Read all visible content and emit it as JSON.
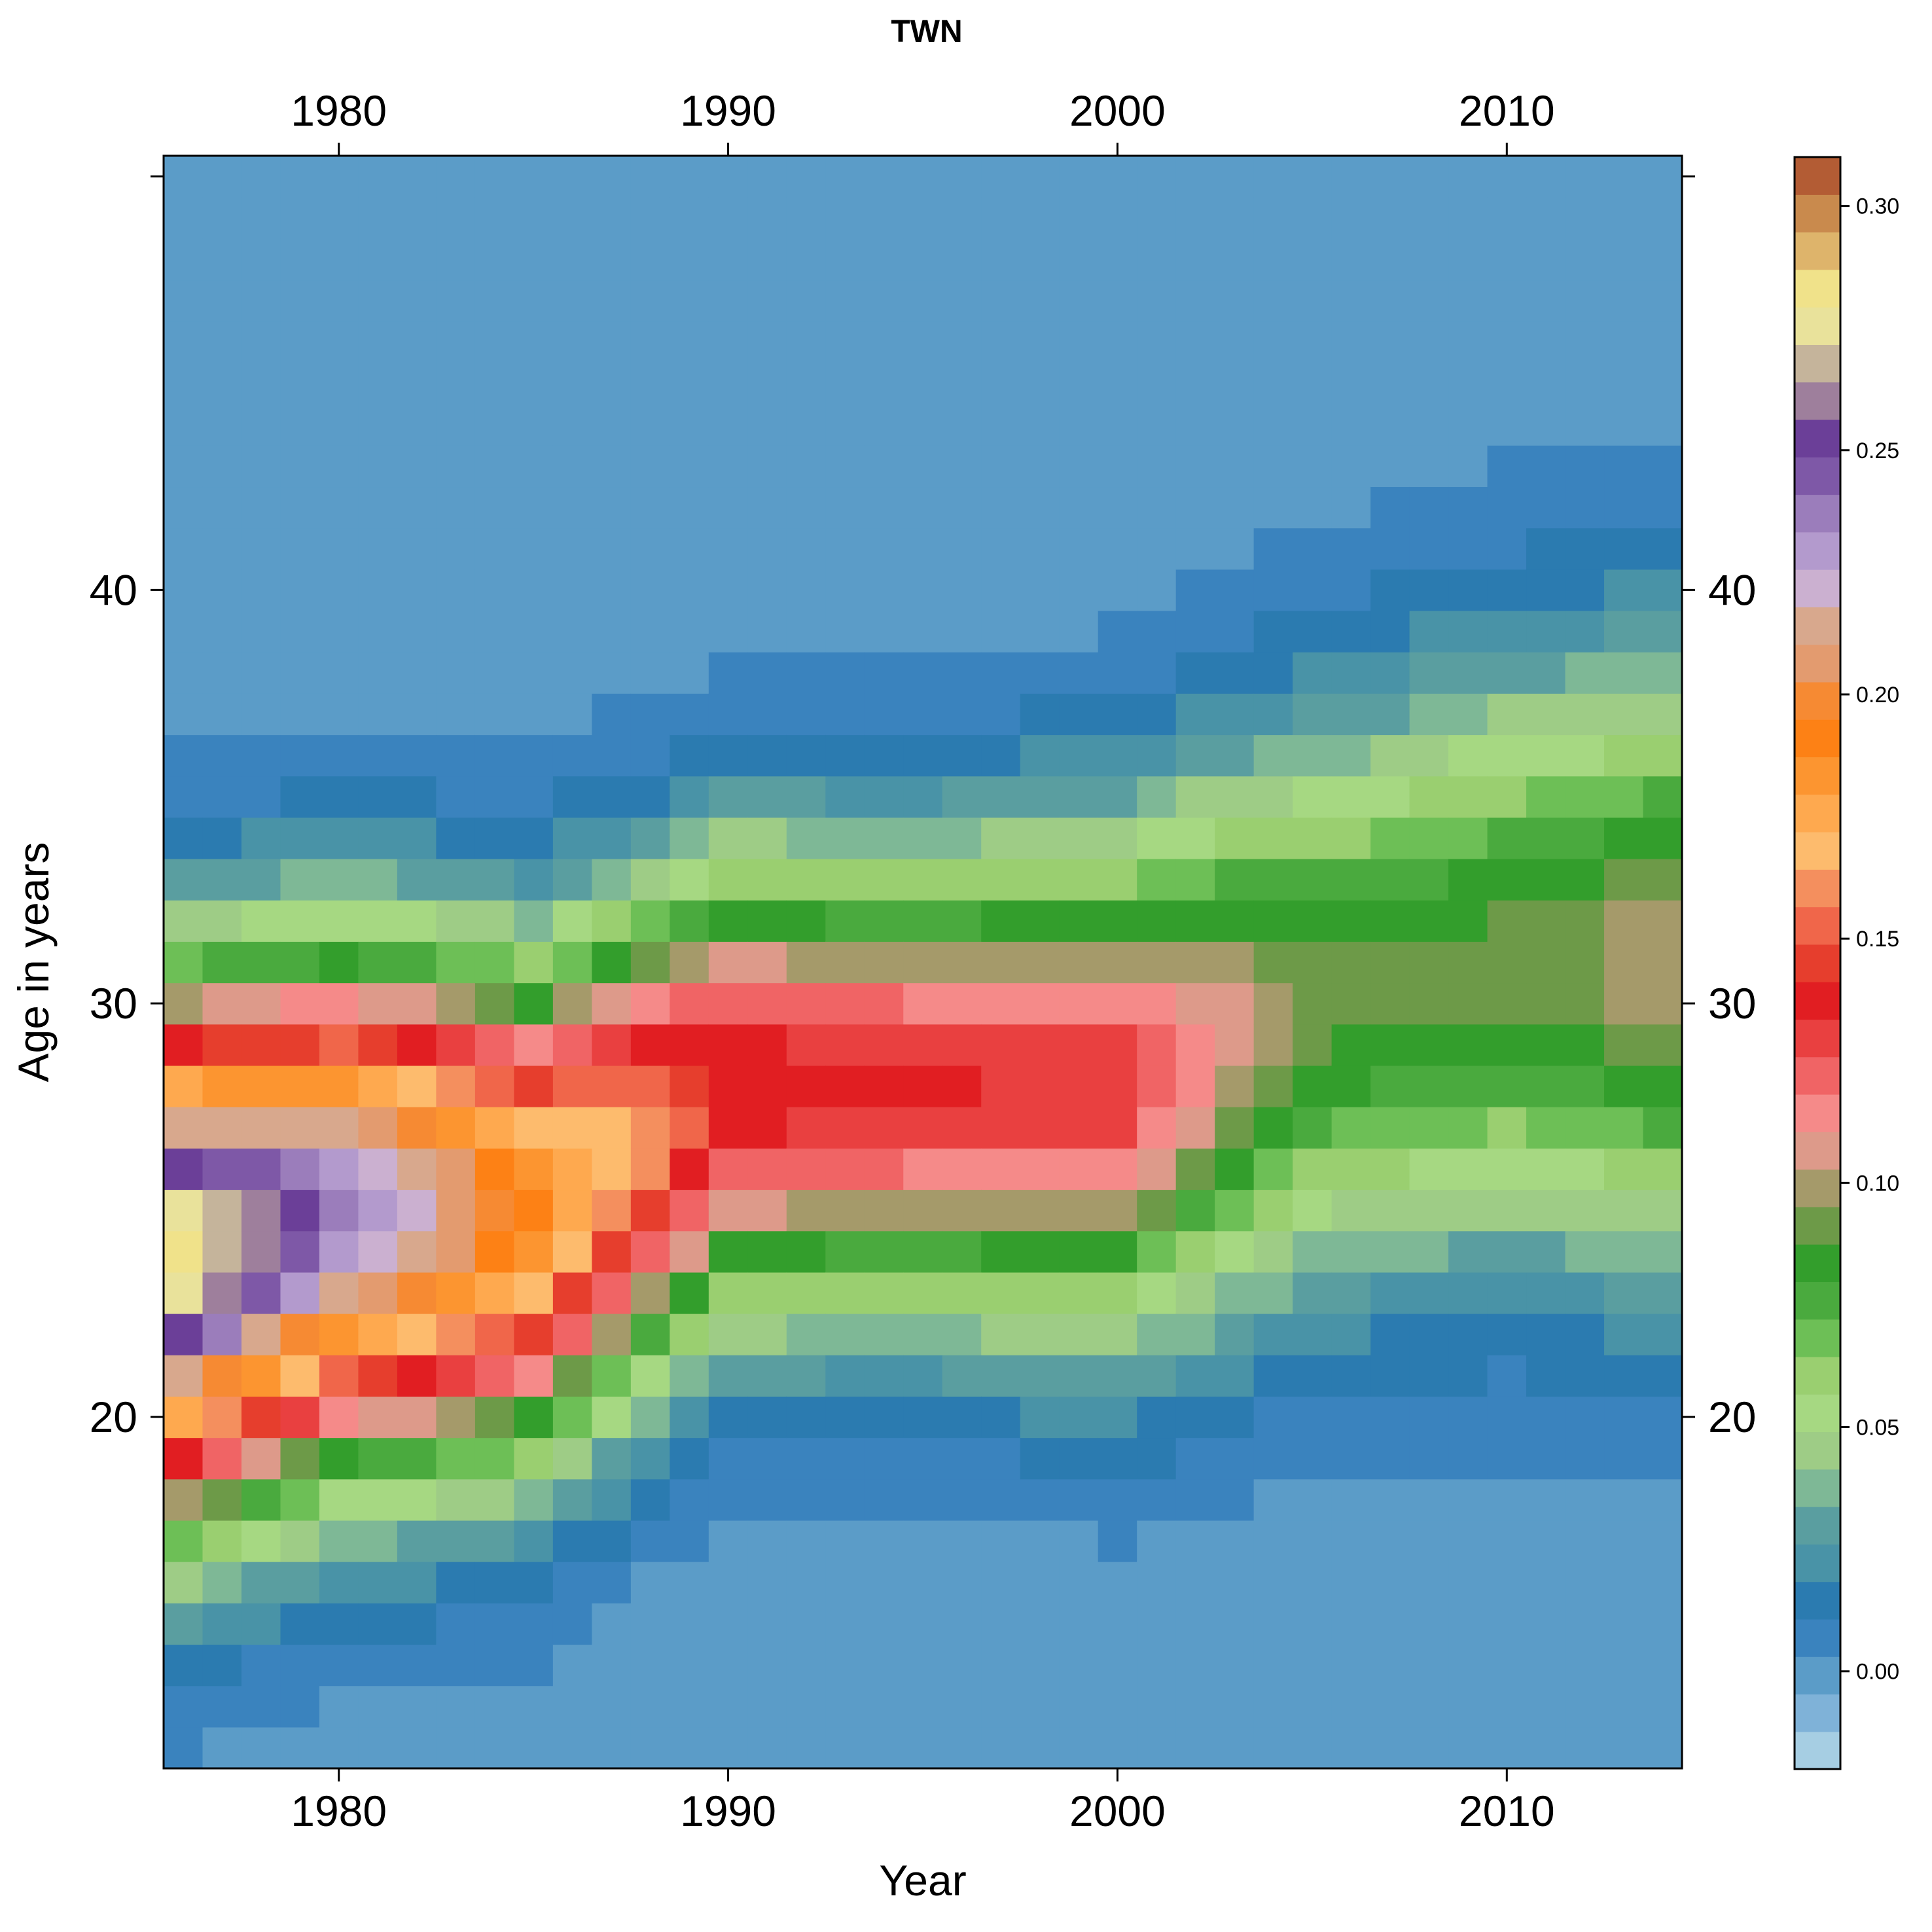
{
  "chart_data": {
    "type": "heatmap",
    "title": "TWN",
    "xlabel": "Year",
    "ylabel": "Age in years",
    "x_ticks": [
      1980,
      1990,
      2000,
      2010
    ],
    "y_ticks": [
      20,
      30,
      40
    ],
    "years_start": 1976,
    "years_end": 2014,
    "age_start": 12,
    "age_end": 50,
    "xlim": [
      1975.5,
      2014.5
    ],
    "ylim": [
      11.5,
      50.5
    ],
    "colorbar": {
      "ticks": [
        "0.00",
        "0.05",
        "0.10",
        "0.15",
        "0.20",
        "0.25",
        "0.30"
      ],
      "tick_values": [
        0.0,
        0.05,
        0.1,
        0.15,
        0.2,
        0.25,
        0.3
      ],
      "range": [
        -0.02,
        0.31
      ],
      "colors": [
        "#a6cee3",
        "#7fb2d8",
        "#5b9cc8",
        "#3a83be",
        "#2b7bb0",
        "#4993a7",
        "#5a9ea0",
        "#7eb896",
        "#9ecc86",
        "#a6d882",
        "#9acf70",
        "#6dbf56",
        "#4aaa3e",
        "#339e2c",
        "#6d9a48",
        "#a59a6a",
        "#dd9a8a",
        "#f58a89",
        "#f06465",
        "#e94040",
        "#e11e22",
        "#e63e2d",
        "#f0664a",
        "#f48f5e",
        "#fdbb6d",
        "#fea94f",
        "#fc9530",
        "#fd8115",
        "#f68a33",
        "#e39b6f",
        "#d8a88d",
        "#cbb0d0",
        "#b39acd",
        "#9b7dbb",
        "#7e58a7",
        "#6b3f98",
        "#9e7f9c",
        "#c5b49b",
        "#e9e29b",
        "#f0e28a",
        "#deb46b",
        "#c98a4d",
        "#b35c34"
      ]
    },
    "grid": "none",
    "peak_ages": [
      {
        "year": 1976,
        "age": 24
      },
      {
        "year": 1980,
        "age": 25
      },
      {
        "year": 1985,
        "age": 25
      },
      {
        "year": 1990,
        "age": 28
      },
      {
        "year": 1995,
        "age": 28
      },
      {
        "year": 2000,
        "age": 28
      },
      {
        "year": 2005,
        "age": 30
      },
      {
        "year": 2010,
        "age": 31
      },
      {
        "year": 2014,
        "age": 31
      }
    ],
    "peak_values": [
      {
        "year": 1976,
        "value": 0.28
      },
      {
        "year": 1980,
        "value": 0.24
      },
      {
        "year": 1985,
        "value": 0.19
      },
      {
        "year": 1990,
        "value": 0.14
      },
      {
        "year": 1995,
        "value": 0.135
      },
      {
        "year": 2000,
        "value": 0.13
      },
      {
        "year": 2005,
        "value": 0.09
      },
      {
        "year": 2010,
        "value": 0.09
      },
      {
        "year": 2014,
        "value": 0.1
      }
    ],
    "spread_sigma": [
      {
        "year": 1976,
        "value": 4.2
      },
      {
        "year": 1985,
        "value": 4.0
      },
      {
        "year": 1995,
        "value": 3.8
      },
      {
        "year": 2005,
        "value": 4.6
      },
      {
        "year": 2014,
        "value": 5.0
      }
    ]
  }
}
